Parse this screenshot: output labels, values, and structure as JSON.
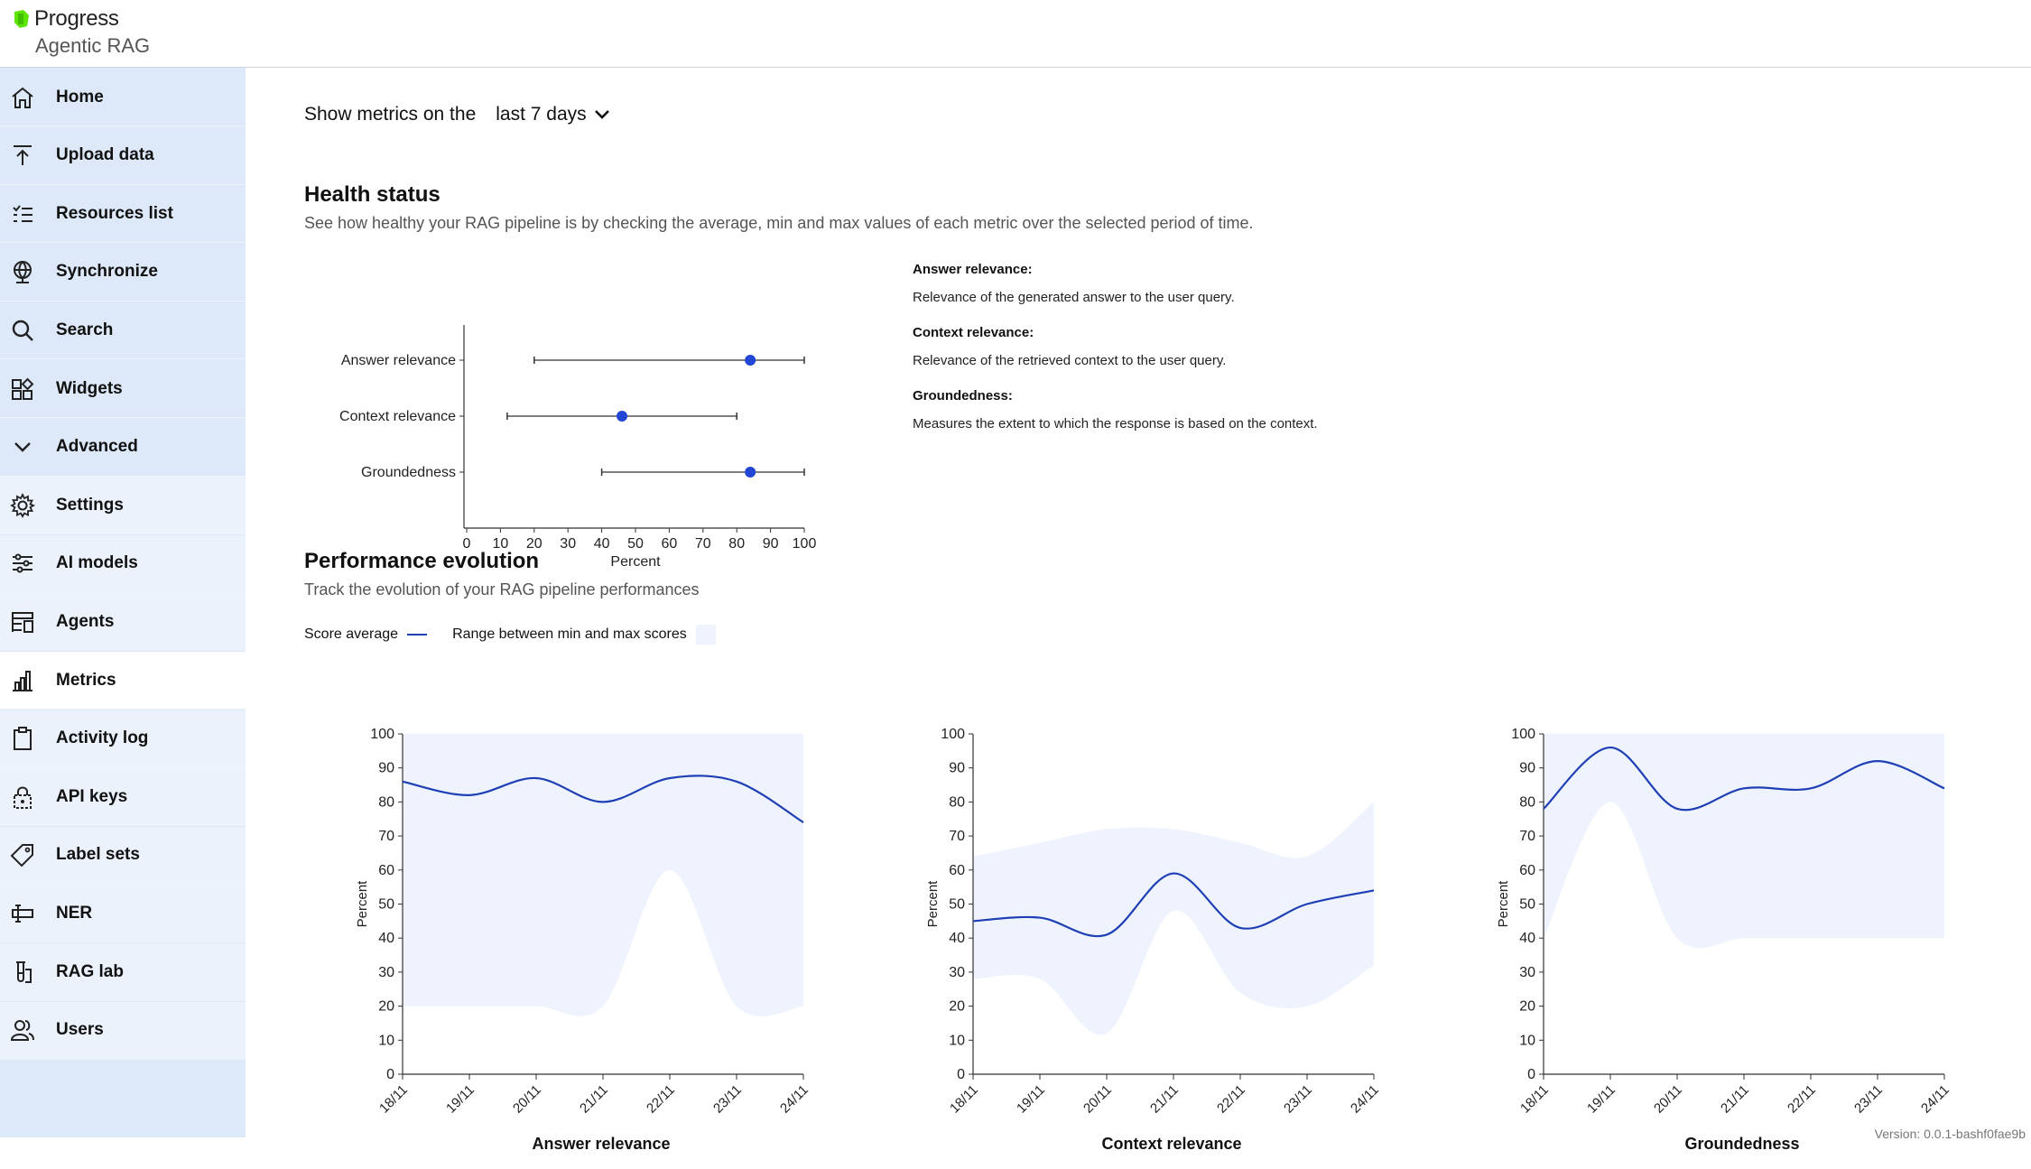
{
  "brand": {
    "name": "Progress",
    "product": "Agentic RAG"
  },
  "nav": [
    {
      "label": "Home",
      "icon": "home-icon"
    },
    {
      "label": "Upload data",
      "icon": "upload-icon"
    },
    {
      "label": "Resources list",
      "icon": "list-icon"
    },
    {
      "label": "Synchronize",
      "icon": "globe-icon"
    },
    {
      "label": "Search",
      "icon": "search-icon"
    },
    {
      "label": "Widgets",
      "icon": "widgets-icon"
    },
    {
      "label": "Advanced",
      "icon": "chevron-down-icon"
    },
    {
      "label": "Settings",
      "icon": "gear-icon"
    },
    {
      "label": "AI models",
      "icon": "sliders-icon"
    },
    {
      "label": "Agents",
      "icon": "agents-icon"
    },
    {
      "label": "Metrics",
      "icon": "bar-chart-icon"
    },
    {
      "label": "Activity log",
      "icon": "clipboard-icon"
    },
    {
      "label": "API keys",
      "icon": "lock-icon"
    },
    {
      "label": "Label sets",
      "icon": "tag-icon"
    },
    {
      "label": "NER",
      "icon": "ner-icon"
    },
    {
      "label": "RAG lab",
      "icon": "flask-icon"
    },
    {
      "label": "Users",
      "icon": "users-icon"
    }
  ],
  "period": {
    "prefix": "Show metrics on the",
    "value": "last 7 days"
  },
  "health": {
    "title": "Health status",
    "subtitle": "See how healthy your RAG pipeline is by checking the average, min and max values of each metric over the selected period of time.",
    "definitions": [
      {
        "title": "Answer relevance:",
        "text": "Relevance of the generated answer to the user query."
      },
      {
        "title": "Context relevance:",
        "text": "Relevance of the retrieved context to the user query."
      },
      {
        "title": "Groundedness:",
        "text": "Measures the extent to which the response is based on the context."
      }
    ]
  },
  "performance": {
    "title": "Performance evolution",
    "subtitle": "Track the evolution of your RAG pipeline performances",
    "legend_avg": "Score average",
    "legend_range": "Range between min and max scores"
  },
  "colors": {
    "accent": "#2146d4",
    "line": "#1f3fb5",
    "band": "#eef3fd",
    "sidebar": "#dde9f8"
  },
  "chart_data": [
    {
      "type": "scatter",
      "title": "",
      "xlabel": "Percent",
      "xlim": [
        0,
        100
      ],
      "xticks": [
        0,
        10,
        20,
        30,
        40,
        50,
        60,
        70,
        80,
        90,
        100
      ],
      "categories": [
        "Answer relevance",
        "Context relevance",
        "Groundedness"
      ],
      "series": [
        {
          "name": "average",
          "values": [
            84,
            46,
            84
          ]
        },
        {
          "name": "min",
          "values": [
            20,
            12,
            40
          ]
        },
        {
          "name": "max",
          "values": [
            100,
            80,
            100
          ]
        }
      ]
    },
    {
      "type": "area",
      "title": "Answer relevance",
      "ylabel": "Percent",
      "ylim": [
        0,
        100
      ],
      "yticks": [
        0,
        10,
        20,
        30,
        40,
        50,
        60,
        70,
        80,
        90,
        100
      ],
      "x": [
        "18/11",
        "19/11",
        "20/11",
        "21/11",
        "22/11",
        "23/11",
        "24/11"
      ],
      "series": [
        {
          "name": "Score average",
          "values": [
            86,
            82,
            87,
            80,
            87,
            86,
            74
          ]
        },
        {
          "name": "min",
          "values": [
            20,
            20,
            20,
            20,
            60,
            20,
            20
          ]
        },
        {
          "name": "max",
          "values": [
            100,
            100,
            100,
            100,
            100,
            100,
            100
          ]
        }
      ]
    },
    {
      "type": "area",
      "title": "Context relevance",
      "ylabel": "Percent",
      "ylim": [
        0,
        100
      ],
      "yticks": [
        0,
        10,
        20,
        30,
        40,
        50,
        60,
        70,
        80,
        90,
        100
      ],
      "x": [
        "18/11",
        "19/11",
        "20/11",
        "21/11",
        "22/11",
        "23/11",
        "24/11"
      ],
      "series": [
        {
          "name": "Score average",
          "values": [
            45,
            46,
            41,
            59,
            43,
            50,
            54
          ]
        },
        {
          "name": "min",
          "values": [
            28,
            28,
            12,
            48,
            24,
            20,
            32
          ]
        },
        {
          "name": "max",
          "values": [
            64,
            68,
            72,
            72,
            68,
            64,
            80
          ]
        }
      ]
    },
    {
      "type": "area",
      "title": "Groundedness",
      "ylabel": "Percent",
      "ylim": [
        0,
        100
      ],
      "yticks": [
        0,
        10,
        20,
        30,
        40,
        50,
        60,
        70,
        80,
        90,
        100
      ],
      "x": [
        "18/11",
        "19/11",
        "20/11",
        "21/11",
        "22/11",
        "23/11",
        "24/11"
      ],
      "series": [
        {
          "name": "Score average",
          "values": [
            78,
            96,
            78,
            84,
            84,
            92,
            84
          ]
        },
        {
          "name": "min",
          "values": [
            40,
            80,
            40,
            40,
            40,
            40,
            40
          ]
        },
        {
          "name": "max",
          "values": [
            100,
            100,
            100,
            100,
            100,
            100,
            100
          ]
        }
      ]
    }
  ],
  "version": "Version: 0.0.1-bashf0fae9b"
}
